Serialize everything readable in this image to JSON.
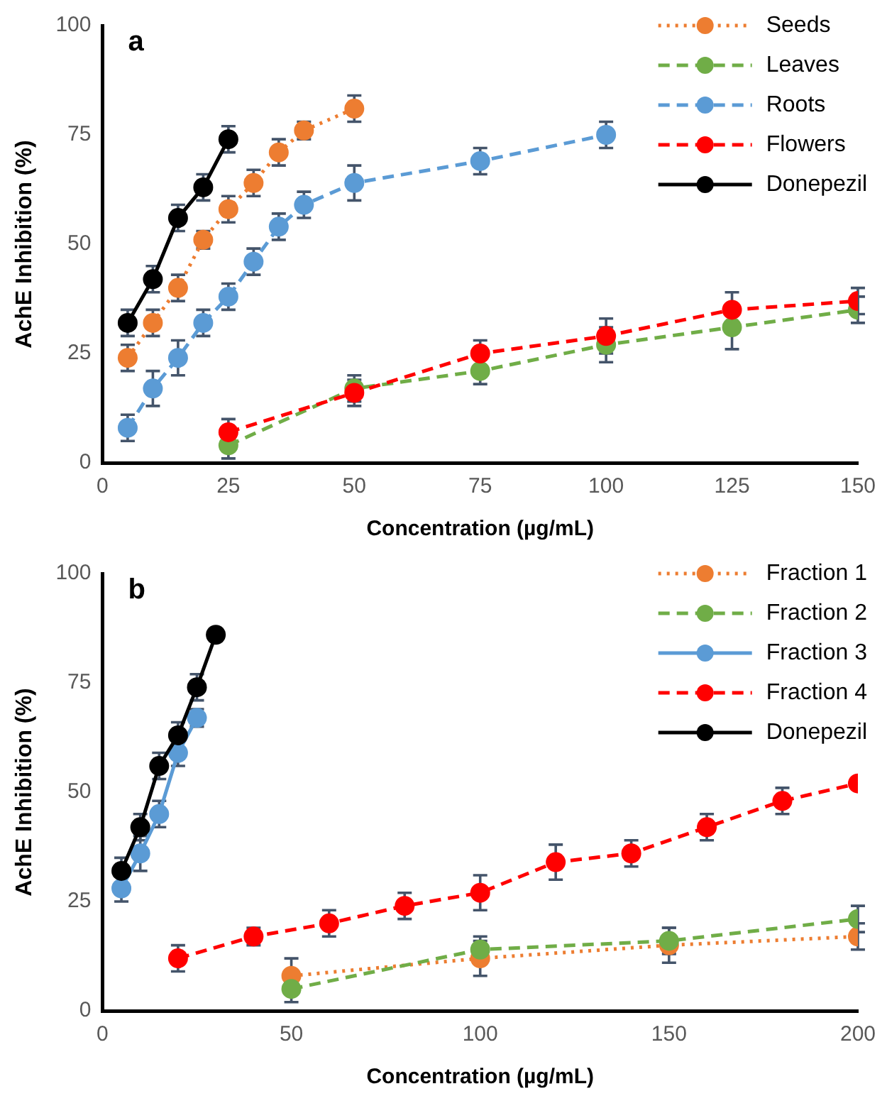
{
  "chart_data": [
    {
      "type": "line",
      "title": "a",
      "xlabel": "Concentration (µg/mL)",
      "ylabel": "AchE Inhibition (%)",
      "xlim": [
        0,
        150
      ],
      "xticks": [
        0,
        25,
        50,
        75,
        100,
        125,
        150
      ],
      "ylim": [
        0,
        100
      ],
      "yticks": [
        0,
        25,
        50,
        75,
        100
      ],
      "grid": false,
      "legend": "top right",
      "marker": "circle",
      "series": [
        {
          "name": "Seeds",
          "color": "#ed7d31",
          "line_style": "dotted",
          "x": [
            5,
            10,
            15,
            20,
            25,
            30,
            35,
            40,
            50
          ],
          "values": [
            24,
            32,
            40,
            51,
            58,
            64,
            71,
            76,
            81
          ],
          "errors": [
            3,
            3,
            3,
            2,
            3,
            3,
            3,
            2,
            3
          ]
        },
        {
          "name": "Leaves",
          "color": "#70ad47",
          "line_style": "dashed",
          "x": [
            25,
            50,
            75,
            100,
            125,
            150
          ],
          "values": [
            4,
            17,
            21,
            27,
            31,
            35
          ],
          "errors": [
            3,
            3,
            3,
            4,
            5,
            3
          ]
        },
        {
          "name": "Roots",
          "color": "#5b9bd5",
          "line_style": "dashed",
          "x": [
            5,
            10,
            15,
            20,
            25,
            30,
            35,
            40,
            50,
            75,
            100
          ],
          "values": [
            8,
            17,
            24,
            32,
            38,
            46,
            54,
            59,
            64,
            69,
            75
          ],
          "errors": [
            3,
            4,
            4,
            3,
            3,
            3,
            3,
            3,
            4,
            3,
            3
          ]
        },
        {
          "name": "Flowers",
          "color": "#ff0000",
          "line_style": "dashed",
          "x": [
            25,
            50,
            75,
            100,
            125,
            150
          ],
          "values": [
            7,
            16,
            25,
            29,
            35,
            37
          ],
          "errors": [
            3,
            3,
            3,
            4,
            4,
            3
          ]
        },
        {
          "name": "Donepezil",
          "color": "#000000",
          "line_style": "solid",
          "x": [
            5,
            10,
            15,
            20,
            25
          ],
          "values": [
            32,
            42,
            56,
            63,
            74
          ],
          "errors": [
            3,
            3,
            3,
            3,
            3
          ]
        }
      ]
    },
    {
      "type": "line",
      "title": "b",
      "xlabel": "Concentration (µg/mL)",
      "ylabel": "AchE Inhibition (%)",
      "xlim": [
        0,
        200
      ],
      "xticks": [
        0,
        50,
        100,
        150,
        200
      ],
      "ylim": [
        0,
        100
      ],
      "yticks": [
        0,
        25,
        50,
        75,
        100
      ],
      "grid": false,
      "legend": "top right",
      "marker": "circle",
      "series": [
        {
          "name": "Fraction 1",
          "color": "#ed7d31",
          "line_style": "dotted",
          "x": [
            50,
            100,
            150,
            200
          ],
          "values": [
            8,
            12,
            15,
            17
          ],
          "errors": [
            4,
            4,
            4,
            3
          ]
        },
        {
          "name": "Fraction 2",
          "color": "#70ad47",
          "line_style": "dashed",
          "x": [
            50,
            100,
            150,
            200
          ],
          "values": [
            5,
            14,
            16,
            21
          ],
          "errors": [
            3,
            3,
            3,
            3
          ]
        },
        {
          "name": "Fraction 3",
          "color": "#5b9bd5",
          "line_style": "solid",
          "x": [
            5,
            10,
            15,
            20,
            25
          ],
          "values": [
            28,
            36,
            45,
            59,
            67
          ],
          "errors": [
            3,
            4,
            3,
            3,
            2
          ]
        },
        {
          "name": "Fraction 4",
          "color": "#ff0000",
          "line_style": "dashed",
          "x": [
            20,
            40,
            60,
            80,
            100,
            120,
            140,
            160,
            180,
            200
          ],
          "values": [
            12,
            17,
            20,
            24,
            27,
            34,
            36,
            42,
            48,
            52
          ],
          "errors": [
            3,
            2,
            3,
            3,
            4,
            4,
            3,
            3,
            3,
            null
          ]
        },
        {
          "name": "Donepezil",
          "color": "#000000",
          "line_style": "solid",
          "x": [
            5,
            10,
            15,
            20,
            25,
            30
          ],
          "values": [
            32,
            42,
            56,
            63,
            74,
            86
          ],
          "errors": [
            3,
            3,
            3,
            3,
            3,
            null
          ]
        }
      ]
    }
  ]
}
